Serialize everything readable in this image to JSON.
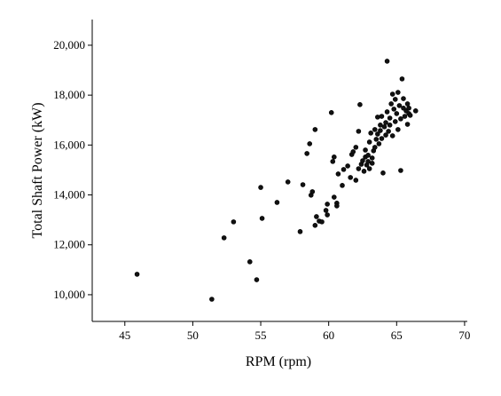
{
  "chart_data": {
    "type": "scatter",
    "xlabel": "RPM (rpm)",
    "ylabel": "Total Shaft Power (kW)",
    "xlim": [
      42.6,
      70.2
    ],
    "ylim": [
      8930,
      21030
    ],
    "xticks": [
      45,
      50,
      55,
      60,
      65,
      70
    ],
    "yticks": [
      {
        "value": 10000,
        "label": "10,000"
      },
      {
        "value": 12000,
        "label": "12,000"
      },
      {
        "value": 14000,
        "label": "14,000"
      },
      {
        "value": 16000,
        "label": "16,000"
      },
      {
        "value": 18000,
        "label": "18,000"
      },
      {
        "value": 20000,
        "label": "20,000"
      }
    ],
    "color": "#111111",
    "x": [
      45.9,
      51.4,
      52.3,
      53.0,
      54.2,
      54.7,
      55.0,
      55.1,
      56.2,
      57.0,
      57.9,
      58.1,
      58.4,
      58.6,
      58.7,
      58.8,
      59.0,
      59.0,
      59.1,
      59.3,
      59.5,
      59.8,
      59.9,
      59.9,
      60.2,
      60.3,
      60.4,
      60.4,
      60.6,
      60.6,
      60.7,
      61.0,
      61.1,
      61.4,
      61.6,
      61.7,
      61.8,
      62.0,
      62.0,
      62.2,
      62.2,
      62.3,
      62.4,
      62.5,
      62.6,
      62.7,
      62.7,
      62.8,
      62.9,
      62.9,
      63.0,
      63.0,
      63.1,
      63.2,
      63.2,
      63.3,
      63.4,
      63.4,
      63.5,
      63.6,
      63.6,
      63.7,
      63.8,
      63.8,
      63.9,
      63.9,
      64.0,
      64.1,
      64.2,
      64.2,
      64.3,
      64.3,
      64.4,
      64.5,
      64.5,
      64.6,
      64.7,
      64.7,
      64.8,
      64.9,
      64.9,
      65.0,
      65.1,
      65.1,
      65.2,
      65.3,
      65.3,
      65.4,
      65.5,
      65.5,
      65.6,
      65.7,
      65.8,
      65.8,
      65.9,
      65.9,
      66.0,
      66.4
    ],
    "values": [
      10820,
      9820,
      12280,
      12920,
      11320,
      10600,
      14300,
      13060,
      13700,
      14520,
      12530,
      14410,
      15660,
      16050,
      13990,
      14130,
      16620,
      12780,
      13130,
      12950,
      12920,
      13380,
      13200,
      13630,
      17300,
      15340,
      15520,
      13910,
      13670,
      13560,
      14840,
      14380,
      15020,
      15160,
      14700,
      15620,
      15730,
      14590,
      15910,
      15050,
      16550,
      17620,
      15230,
      15370,
      14950,
      15520,
      15800,
      15200,
      15340,
      15590,
      15050,
      16120,
      16480,
      15480,
      15270,
      15770,
      15910,
      16620,
      16230,
      16440,
      17120,
      16050,
      16800,
      16580,
      17150,
      16260,
      14880,
      16730,
      16400,
      16900,
      19360,
      17330,
      16550,
      17080,
      16800,
      17650,
      18040,
      16370,
      17440,
      16940,
      17830,
      17260,
      16620,
      18110,
      17580,
      17050,
      14980,
      18650,
      17480,
      17860,
      17150,
      17370,
      17650,
      16830,
      17260,
      17480,
      17190,
      17370
    ]
  }
}
